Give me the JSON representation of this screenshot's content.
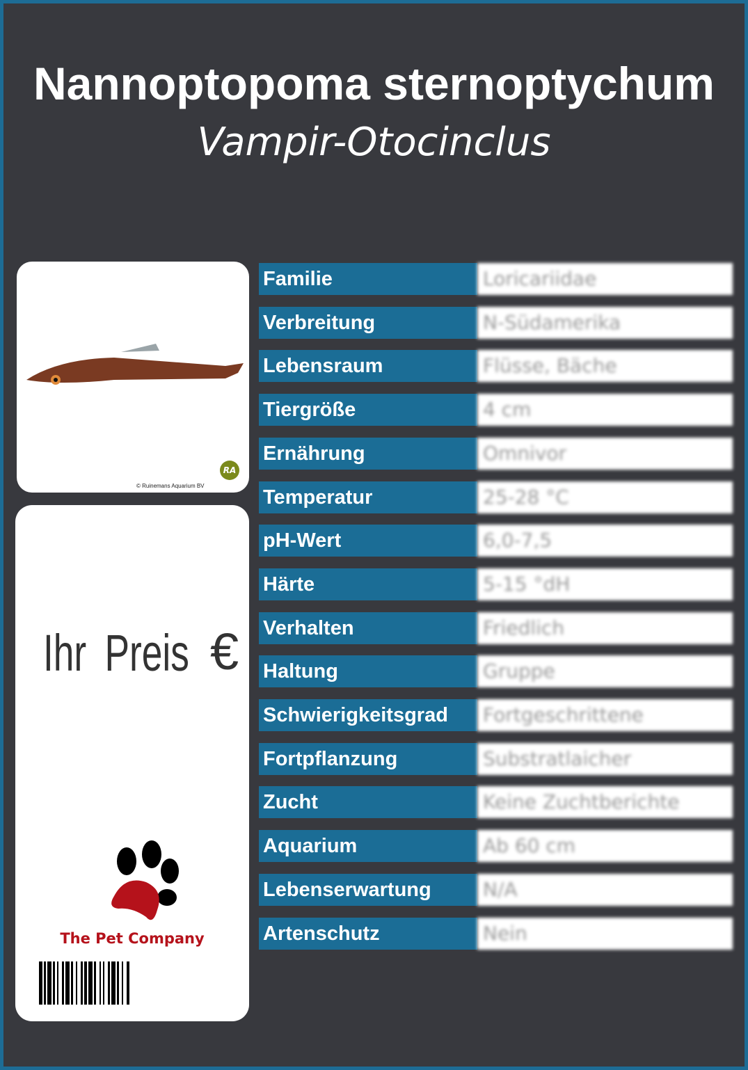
{
  "header": {
    "title": "Nannoptopoma sternoptychum",
    "subtitle": "Vampir-Otocinclus"
  },
  "photo": {
    "credit": "© Ruinemans Aquarium BV",
    "logo_text": "RA"
  },
  "price": {
    "label": "Ihr Preis",
    "currency": "€"
  },
  "brand": {
    "name": "The Pet Company",
    "brand_color": "#b5121b"
  },
  "colors": {
    "background": "#38393e",
    "label_bg": "#1b6d96",
    "border": "#1d6c95"
  },
  "rows": [
    {
      "label": "Familie",
      "value": "Loricariidae"
    },
    {
      "label": "Verbreitung",
      "value": "N-Südamerika"
    },
    {
      "label": "Lebensraum",
      "value": "Flüsse, Bäche"
    },
    {
      "label": "Tiergröße",
      "value": "4 cm"
    },
    {
      "label": "Ernährung",
      "value": "Omnivor"
    },
    {
      "label": "Temperatur",
      "value": "25-28 °C"
    },
    {
      "label": "pH-Wert",
      "value": "6,0-7,5"
    },
    {
      "label": "Härte",
      "value": "5-15 °dH"
    },
    {
      "label": "Verhalten",
      "value": "Friedlich"
    },
    {
      "label": "Haltung",
      "value": "Gruppe"
    },
    {
      "label": "Schwierigkeitsgrad",
      "value": "Fortgeschrittene"
    },
    {
      "label": "Fortpflanzung",
      "value": "Substratlaicher"
    },
    {
      "label": "Zucht",
      "value": "Keine Zuchtberichte"
    },
    {
      "label": "Aquarium",
      "value": "Ab 60 cm"
    },
    {
      "label": "Lebenserwartung",
      "value": "N/A"
    },
    {
      "label": "Artenschutz",
      "value": "Nein"
    }
  ]
}
